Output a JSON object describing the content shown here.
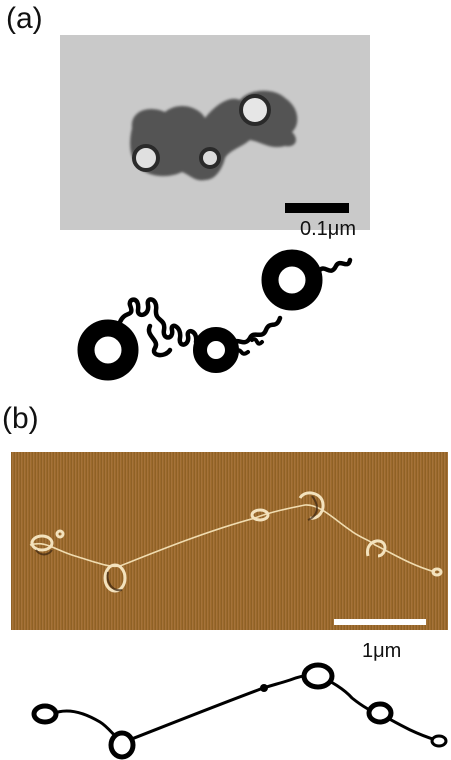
{
  "panels": [
    {
      "id": "a",
      "label": "(a)",
      "scale_bar_label": "0.1μm"
    },
    {
      "id": "b",
      "label": "(b)",
      "scale_bar_label": "1μm"
    }
  ],
  "colors": {
    "tem_background": "#c9c9c9",
    "tem_particle": "#3a3a3a",
    "afm_background": "#9c6a2c",
    "afm_highlight": "#f0dcb0",
    "schematic": "#000000",
    "scale_bar_a": "#000000",
    "scale_bar_b": "#ffffff"
  }
}
